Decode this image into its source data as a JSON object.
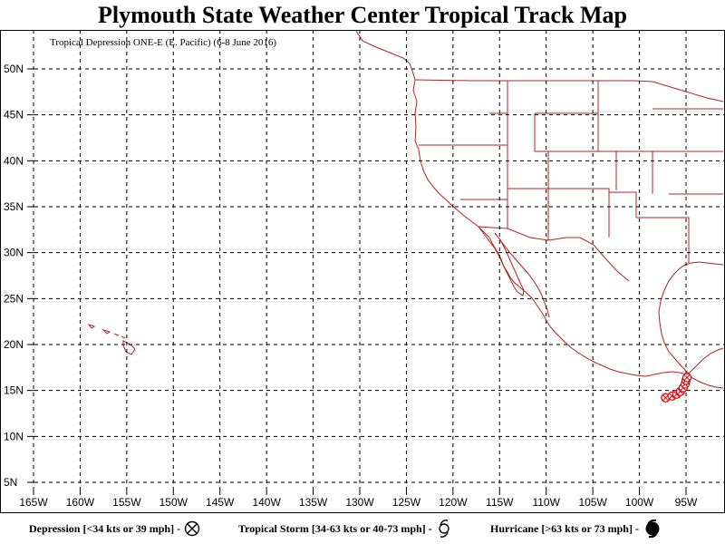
{
  "title": "Plymouth State Weather Center Tropical Track Map",
  "subtitle": "Tropical Depression ONE-E (E. Pacific) (6-8 June 2016)",
  "colors": {
    "frame": "#000000",
    "grid": "#000000",
    "coastline": "#b22222",
    "track": "#e00000"
  },
  "map": {
    "lon_range": [
      -168,
      -88
    ],
    "lat_range": [
      3,
      54
    ],
    "lon_ticks": [
      {
        "value": -165,
        "label": "165W"
      },
      {
        "value": -160,
        "label": "160W"
      },
      {
        "value": -155,
        "label": "155W"
      },
      {
        "value": -150,
        "label": "150W"
      },
      {
        "value": -145,
        "label": "145W"
      },
      {
        "value": -140,
        "label": "140W"
      },
      {
        "value": -135,
        "label": "135W"
      },
      {
        "value": -130,
        "label": "130W"
      },
      {
        "value": -125,
        "label": "125W"
      },
      {
        "value": -120,
        "label": "120W"
      },
      {
        "value": -115,
        "label": "115W"
      },
      {
        "value": -110,
        "label": "110W"
      },
      {
        "value": -105,
        "label": "105W"
      },
      {
        "value": -100,
        "label": "100W"
      },
      {
        "value": -95,
        "label": "95W"
      }
    ],
    "lat_ticks": [
      {
        "value": 50,
        "label": "50N"
      },
      {
        "value": 45,
        "label": "45N"
      },
      {
        "value": 40,
        "label": "40N"
      },
      {
        "value": 35,
        "label": "35N"
      },
      {
        "value": 30,
        "label": "30N"
      },
      {
        "value": 25,
        "label": "25N"
      },
      {
        "value": 20,
        "label": "20N"
      },
      {
        "value": 15,
        "label": "15N"
      },
      {
        "value": 10,
        "label": "10N"
      },
      {
        "value": 5,
        "label": "5N"
      }
    ],
    "track_points": [
      {
        "lon": -97.2,
        "lat": 14.2,
        "category": "depression"
      },
      {
        "lon": -96.5,
        "lat": 14.4,
        "category": "depression"
      },
      {
        "lon": -96.0,
        "lat": 14.6,
        "category": "depression"
      },
      {
        "lon": -95.6,
        "lat": 14.9,
        "category": "depression"
      },
      {
        "lon": -95.3,
        "lat": 15.3,
        "category": "depression"
      },
      {
        "lon": -95.1,
        "lat": 15.7,
        "category": "depression"
      },
      {
        "lon": -95.0,
        "lat": 16.1,
        "category": "depression"
      },
      {
        "lon": -94.9,
        "lat": 16.4,
        "category": "depression"
      }
    ]
  },
  "legend": {
    "depression": "Depression [<34 kts or 39 mph] -",
    "tropical_storm": "Tropical Storm [34-63 kts or 40-73 mph] -",
    "hurricane": "Hurricane [>63 kts or 73 mph] -"
  }
}
